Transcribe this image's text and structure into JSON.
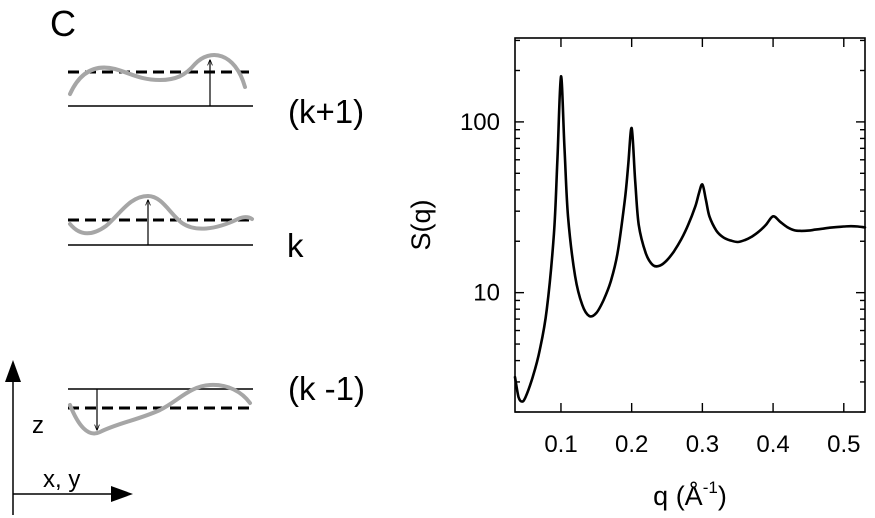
{
  "panel_label": "C",
  "schematic": {
    "layer_labels": [
      "(k+1)",
      "k",
      "(k -1)"
    ],
    "axis_z": "z",
    "axis_xy": "x, y"
  },
  "chart_data": {
    "type": "line",
    "title": "",
    "xlabel": "q (Å",
    "xlabel_exp": "-1",
    "xlabel_close": ")",
    "ylabel": "S(q)",
    "yscale": "log",
    "xlim": [
      0.035,
      0.53
    ],
    "ylim": [
      2.0,
      310
    ],
    "x_ticks": [
      0.1,
      0.2,
      0.3,
      0.4,
      0.5
    ],
    "x_tick_labels": [
      "0.1",
      "0.2",
      "0.3",
      "0.4",
      "0.5"
    ],
    "y_ticks": [
      10,
      100
    ],
    "y_tick_labels": [
      "10",
      "100"
    ],
    "grid": false,
    "series": [
      {
        "color": "#000000",
        "x": [
          0.035,
          0.04,
          0.045,
          0.05,
          0.06,
          0.07,
          0.08,
          0.09,
          0.095,
          0.1,
          0.105,
          0.11,
          0.12,
          0.13,
          0.14,
          0.15,
          0.16,
          0.17,
          0.18,
          0.19,
          0.195,
          0.2,
          0.205,
          0.21,
          0.22,
          0.23,
          0.24,
          0.25,
          0.26,
          0.27,
          0.28,
          0.29,
          0.295,
          0.3,
          0.305,
          0.31,
          0.32,
          0.33,
          0.34,
          0.35,
          0.36,
          0.37,
          0.38,
          0.39,
          0.4,
          0.41,
          0.42,
          0.43,
          0.44,
          0.45,
          0.46,
          0.47,
          0.48,
          0.49,
          0.5,
          0.51,
          0.52,
          0.53
        ],
        "y": [
          3.2,
          2.45,
          2.3,
          2.45,
          3.2,
          4.6,
          8.0,
          22,
          60,
          185,
          70,
          28,
          12.5,
          8.5,
          7.3,
          7.6,
          9.0,
          11.5,
          17,
          34,
          55,
          92,
          45,
          25,
          17,
          14.5,
          14.4,
          15.5,
          17.5,
          20.5,
          25,
          32,
          38,
          43,
          35,
          28,
          23,
          21,
          20.2,
          19.8,
          20.3,
          21.3,
          22.8,
          25,
          28,
          26,
          24.2,
          23.2,
          23.0,
          23.1,
          23.4,
          23.7,
          24.0,
          24.2,
          24.4,
          24.5,
          24.4,
          24.1
        ]
      }
    ]
  }
}
